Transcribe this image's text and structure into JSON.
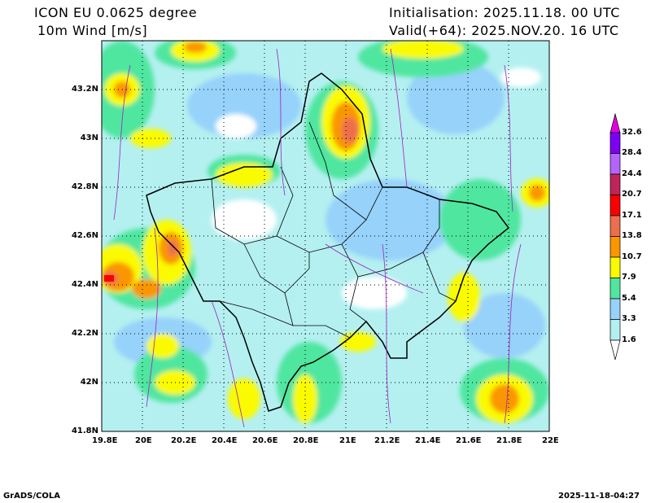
{
  "header": {
    "model": "ICON EU 0.0625 degree",
    "variable": "10m Wind [m/s]",
    "initialisation": "Initialisation: 2025.11.18. 00 UTC",
    "valid": "Valid(+64): 2025.NOV.20. 16 UTC"
  },
  "axes": {
    "lat_labels": [
      "43.2N",
      "43N",
      "42.8N",
      "42.6N",
      "42.4N",
      "42.2N",
      "42N",
      "41.8N"
    ],
    "lon_labels": [
      "19.8E",
      "20E",
      "20.2E",
      "20.4E",
      "20.6E",
      "20.8E",
      "21E",
      "21.2E",
      "21.4E",
      "21.6E",
      "21.8E",
      "22E"
    ]
  },
  "legend": {
    "labels": [
      "32.6",
      "28.4",
      "24.4",
      "20.7",
      "17.1",
      "13.8",
      "10.7",
      "7.9",
      "5.4",
      "3.3",
      "1.6"
    ],
    "colors": [
      "#e100e1",
      "#7d00f5",
      "#b464fa",
      "#c0245a",
      "#fa0000",
      "#ec6e4c",
      "#fa9600",
      "#fafa00",
      "#50e6a0",
      "#96d2fa",
      "#b4f0f0",
      "#ffffff"
    ]
  },
  "footer": {
    "left": "GrADS/COLA",
    "right": "2025-11-18-04:27"
  }
}
